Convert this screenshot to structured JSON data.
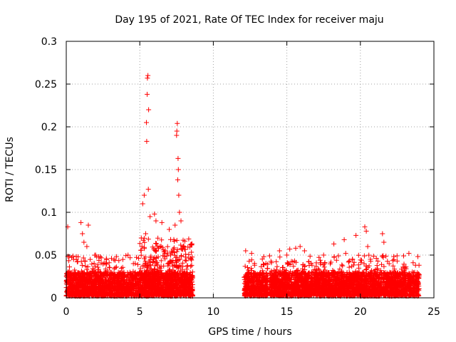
{
  "chart_data": {
    "type": "scatter",
    "title": "Day 195 of 2021, Rate Of TEC Index for receiver maju",
    "xlabel": "GPS time / hours",
    "ylabel": "ROTI / TECUs",
    "xlim": [
      0,
      25
    ],
    "ylim": [
      0,
      0.3
    ],
    "xticks": [
      0,
      5,
      10,
      15,
      20,
      25
    ],
    "xtick_labels": [
      "0",
      "5",
      "10",
      "15",
      "20",
      "25"
    ],
    "yticks": [
      0,
      0.05,
      0.1,
      0.15,
      0.2,
      0.25,
      0.3
    ],
    "ytick_labels": [
      "0",
      "0.05",
      "0.1",
      "0.15",
      "0.2",
      "0.25",
      "0.3"
    ],
    "grid": true,
    "marker": "plus",
    "marker_color": "#ff0000",
    "series": [
      {
        "name": "ROTI",
        "segments": [
          {
            "x_start": 0.0,
            "x_end": 8.6,
            "base_min": 0.002,
            "base_max": 0.03
          },
          {
            "x_start": 12.1,
            "x_end": 13.7,
            "base_min": 0.002,
            "base_max": 0.03
          },
          {
            "x_start": 13.8,
            "x_end": 24.0,
            "base_min": 0.002,
            "base_max": 0.03
          }
        ],
        "outliers": [
          {
            "x": 0.1,
            "y": 0.083
          },
          {
            "x": 0.5,
            "y": 0.045
          },
          {
            "x": 1.0,
            "y": 0.088
          },
          {
            "x": 1.1,
            "y": 0.075
          },
          {
            "x": 1.2,
            "y": 0.065
          },
          {
            "x": 1.5,
            "y": 0.085
          },
          {
            "x": 1.4,
            "y": 0.06
          },
          {
            "x": 2.0,
            "y": 0.05
          },
          {
            "x": 2.3,
            "y": 0.048
          },
          {
            "x": 4.2,
            "y": 0.05
          },
          {
            "x": 5.1,
            "y": 0.07
          },
          {
            "x": 5.2,
            "y": 0.11
          },
          {
            "x": 5.3,
            "y": 0.12
          },
          {
            "x": 5.4,
            "y": 0.075
          },
          {
            "x": 5.45,
            "y": 0.205
          },
          {
            "x": 5.47,
            "y": 0.183
          },
          {
            "x": 5.5,
            "y": 0.238
          },
          {
            "x": 5.52,
            "y": 0.257
          },
          {
            "x": 5.55,
            "y": 0.26
          },
          {
            "x": 5.6,
            "y": 0.22
          },
          {
            "x": 5.58,
            "y": 0.127
          },
          {
            "x": 5.7,
            "y": 0.095
          },
          {
            "x": 6.0,
            "y": 0.098
          },
          {
            "x": 6.1,
            "y": 0.09
          },
          {
            "x": 6.5,
            "y": 0.088
          },
          {
            "x": 7.0,
            "y": 0.08
          },
          {
            "x": 7.5,
            "y": 0.19
          },
          {
            "x": 7.52,
            "y": 0.195
          },
          {
            "x": 7.55,
            "y": 0.204
          },
          {
            "x": 7.6,
            "y": 0.163
          },
          {
            "x": 7.62,
            "y": 0.15
          },
          {
            "x": 7.58,
            "y": 0.138
          },
          {
            "x": 7.65,
            "y": 0.12
          },
          {
            "x": 7.7,
            "y": 0.1
          },
          {
            "x": 7.8,
            "y": 0.09
          },
          {
            "x": 7.4,
            "y": 0.085
          },
          {
            "x": 8.0,
            "y": 0.06
          },
          {
            "x": 12.2,
            "y": 0.055
          },
          {
            "x": 12.6,
            "y": 0.052
          },
          {
            "x": 14.5,
            "y": 0.055
          },
          {
            "x": 15.0,
            "y": 0.05
          },
          {
            "x": 15.2,
            "y": 0.057
          },
          {
            "x": 15.6,
            "y": 0.058
          },
          {
            "x": 15.9,
            "y": 0.06
          },
          {
            "x": 16.2,
            "y": 0.055
          },
          {
            "x": 17.5,
            "y": 0.05
          },
          {
            "x": 18.2,
            "y": 0.063
          },
          {
            "x": 18.9,
            "y": 0.068
          },
          {
            "x": 19.0,
            "y": 0.052
          },
          {
            "x": 19.7,
            "y": 0.073
          },
          {
            "x": 20.3,
            "y": 0.083
          },
          {
            "x": 20.4,
            "y": 0.078
          },
          {
            "x": 20.5,
            "y": 0.06
          },
          {
            "x": 21.5,
            "y": 0.075
          },
          {
            "x": 21.6,
            "y": 0.065
          },
          {
            "x": 22.5,
            "y": 0.043
          },
          {
            "x": 23.3,
            "y": 0.052
          }
        ]
      }
    ]
  }
}
